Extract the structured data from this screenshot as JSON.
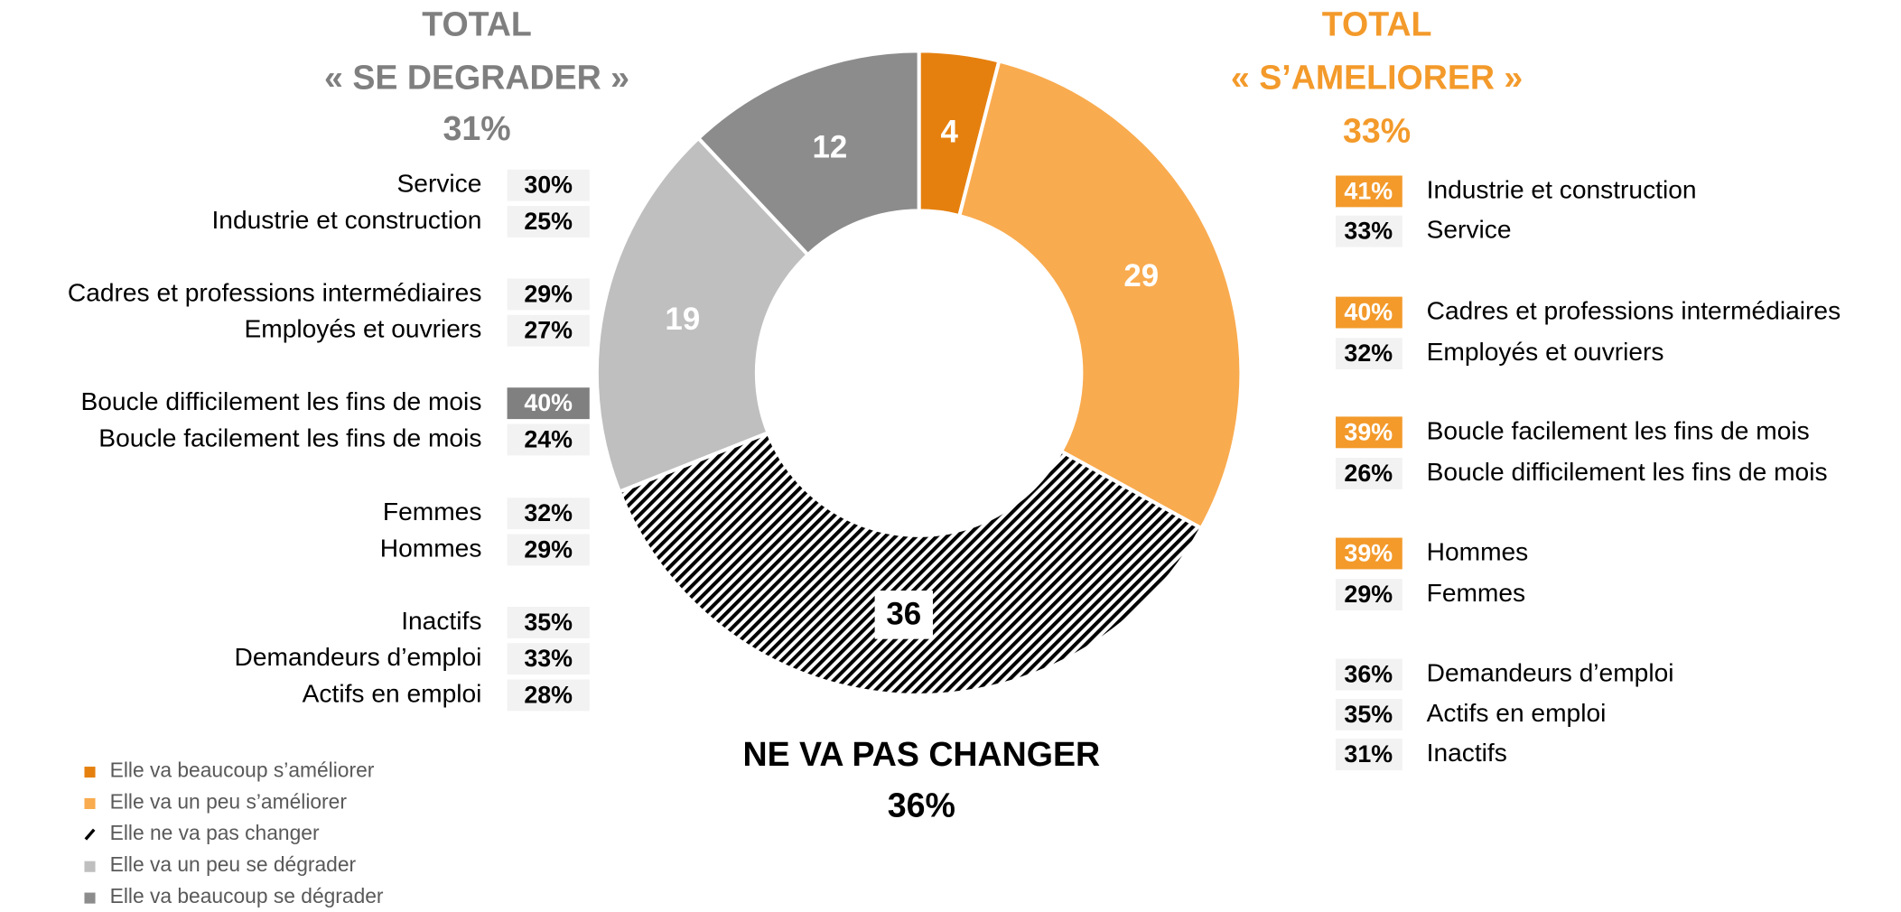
{
  "chart_data": {
    "type": "donut",
    "series": [
      {
        "name": "Elle va beaucoup s’améliorer",
        "color": "#e5800f",
        "value": 4,
        "hatched": false
      },
      {
        "name": "Elle va un peu s’améliorer",
        "color": "#f9ab4f",
        "value": 29,
        "hatched": false
      },
      {
        "name": "Elle ne va pas changer",
        "color": "#000000",
        "value": 36,
        "hatched": true
      },
      {
        "name": "Elle va un peu se dégrader",
        "color": "#bfbfbf",
        "value": 19,
        "hatched": false
      },
      {
        "name": "Elle va beaucoup se dégrader",
        "color": "#8c8c8c",
        "value": 12,
        "hatched": false
      }
    ],
    "left_title": [
      "TOTAL",
      "« SE DEGRADER »",
      "31%"
    ],
    "right_title": [
      "TOTAL",
      "« S’AMELIORER »",
      "33%"
    ],
    "bottom_title": [
      "NE VA PAS CHANGER",
      "36%"
    ],
    "left_panel": [
      [
        {
          "label": "Service",
          "value": 30,
          "value_label": "30%",
          "highlight": false
        },
        {
          "label": "Industrie et construction",
          "value": 25,
          "value_label": "25%",
          "highlight": false
        }
      ],
      [
        {
          "label": "Cadres et professions intermédiaires",
          "value": 29,
          "value_label": "29%",
          "highlight": false
        },
        {
          "label": "Employés et ouvriers",
          "value": 27,
          "value_label": "27%",
          "highlight": false
        }
      ],
      [
        {
          "label": "Boucle difficilement les fins de mois",
          "value": 40,
          "value_label": "40%",
          "highlight": true
        },
        {
          "label": "Boucle facilement les fins de mois",
          "value": 24,
          "value_label": "24%",
          "highlight": false
        }
      ],
      [
        {
          "label": "Femmes",
          "value": 32,
          "value_label": "32%",
          "highlight": false
        },
        {
          "label": "Hommes",
          "value": 29,
          "value_label": "29%",
          "highlight": false
        }
      ],
      [
        {
          "label": "Inactifs",
          "value": 35,
          "value_label": "35%",
          "highlight": false
        },
        {
          "label": "Demandeurs d’emploi",
          "value": 33,
          "value_label": "33%",
          "highlight": false
        },
        {
          "label": "Actifs en emploi",
          "value": 28,
          "value_label": "28%",
          "highlight": false
        }
      ]
    ],
    "right_panel": [
      [
        {
          "label": "Industrie et construction",
          "value": 41,
          "value_label": "41%",
          "highlight": true
        },
        {
          "label": "Service",
          "value": 33,
          "value_label": "33%",
          "highlight": false
        }
      ],
      [
        {
          "label": "Cadres et professions intermédiaires",
          "value": 40,
          "value_label": "40%",
          "highlight": true
        },
        {
          "label": "Employés et ouvriers",
          "value": 32,
          "value_label": "32%",
          "highlight": false
        }
      ],
      [
        {
          "label": "Boucle facilement les fins de mois",
          "value": 39,
          "value_label": "39%",
          "highlight": true
        },
        {
          "label": "Boucle difficilement les fins de mois",
          "value": 26,
          "value_label": "26%",
          "highlight": false
        }
      ],
      [
        {
          "label": "Hommes",
          "value": 39,
          "value_label": "39%",
          "highlight": true
        },
        {
          "label": "Femmes",
          "value": 29,
          "value_label": "29%",
          "highlight": false
        }
      ],
      [
        {
          "label": "Demandeurs d’emploi",
          "value": 36,
          "value_label": "36%",
          "highlight": false
        },
        {
          "label": "Actifs en emploi",
          "value": 35,
          "value_label": "35%",
          "highlight": false
        },
        {
          "label": "Inactifs",
          "value": 31,
          "value_label": "31%",
          "highlight": false
        }
      ]
    ]
  }
}
